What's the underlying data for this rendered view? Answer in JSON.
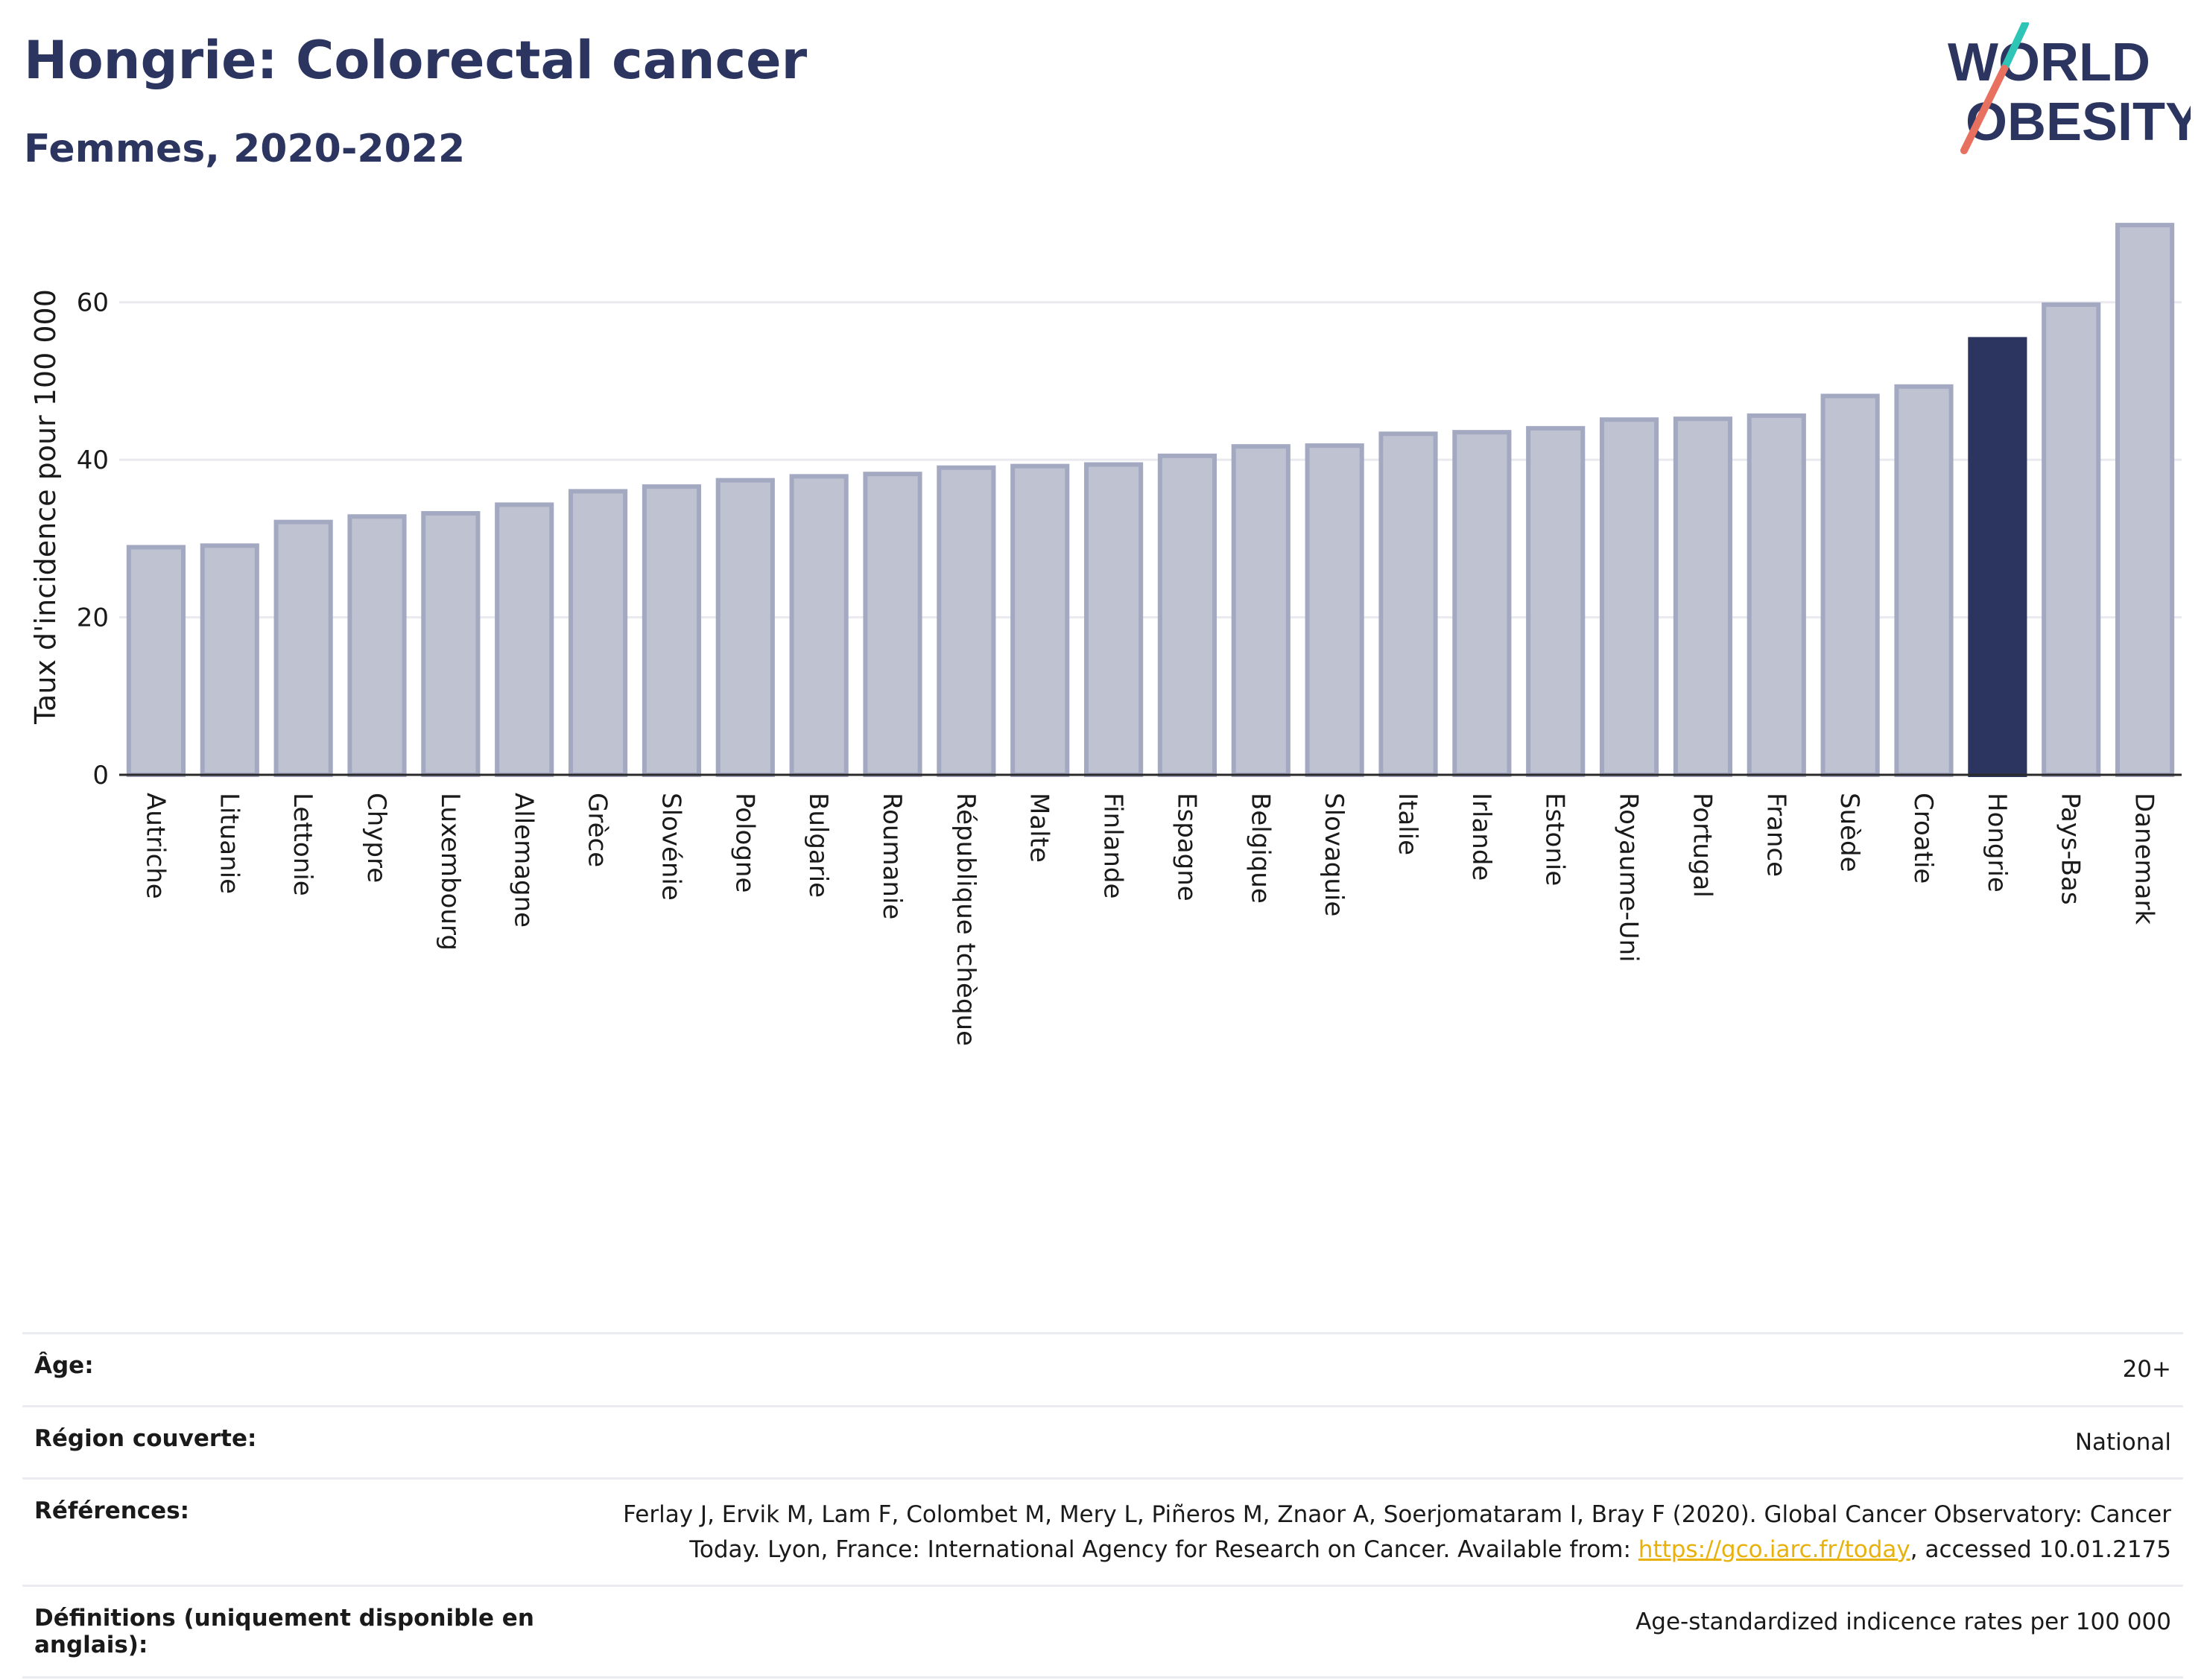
{
  "header": {
    "title": "Hongrie: Colorectal cancer",
    "subtitle": "Femmes, 2020-2022"
  },
  "logo": {
    "line1": "WORLD",
    "line2": "OBESITY"
  },
  "colors": {
    "bar": "#bfc2d1",
    "bar_border": "#a4a9c2",
    "highlight": "#2b3560",
    "accent_teal": "#2ec4b6",
    "accent_coral": "#e8705f",
    "grid": "#e9e9ef",
    "link": "#e8b10b"
  },
  "chart_data": {
    "type": "bar",
    "ylabel": "Taux d'incidence pour 100 000",
    "ylim": [
      0,
      70
    ],
    "yticks": [
      0,
      20,
      40,
      60
    ],
    "grid": true,
    "highlight": "Hongrie",
    "categories": [
      "Autriche",
      "Lituanie",
      "Lettonie",
      "Chypre",
      "Luxembourg",
      "Allemagne",
      "Grèce",
      "Slovénie",
      "Pologne",
      "Bulgarie",
      "Roumanie",
      "République tchèque",
      "Malte",
      "Finlande",
      "Espagne",
      "Belgique",
      "Slovaquie",
      "Italie",
      "Irlande",
      "Estonie",
      "Royaume-Uni",
      "Portugal",
      "France",
      "Suède",
      "Croatie",
      "Hongrie",
      "Pays-Bas",
      "Danemark"
    ],
    "values": [
      28.9,
      29.1,
      32.1,
      32.8,
      33.2,
      34.3,
      36.0,
      36.6,
      37.4,
      37.9,
      38.2,
      39.0,
      39.2,
      39.4,
      40.5,
      41.7,
      41.8,
      43.3,
      43.5,
      44.0,
      45.1,
      45.2,
      45.6,
      48.1,
      49.3,
      55.3,
      59.7,
      69.8
    ]
  },
  "info": [
    {
      "key": "Âge:",
      "value": "20+"
    },
    {
      "key": "Région couverte:",
      "value": "National"
    },
    {
      "key": "Références:",
      "value_before": "Ferlay J, Ervik M, Lam F, Colombet M, Mery L, Piñeros M, Znaor A, Soerjomataram I, Bray F (2020). Global Cancer Observatory: Cancer Today. Lyon, France: International Agency for Research on Cancer. Available from: ",
      "link": "https://gco.iarc.fr/today",
      "value_after": ", accessed 10.01.2175"
    },
    {
      "key": "Définitions (uniquement disponible en anglais):",
      "value": "Age-standardized indicence rates per 100 000"
    }
  ]
}
